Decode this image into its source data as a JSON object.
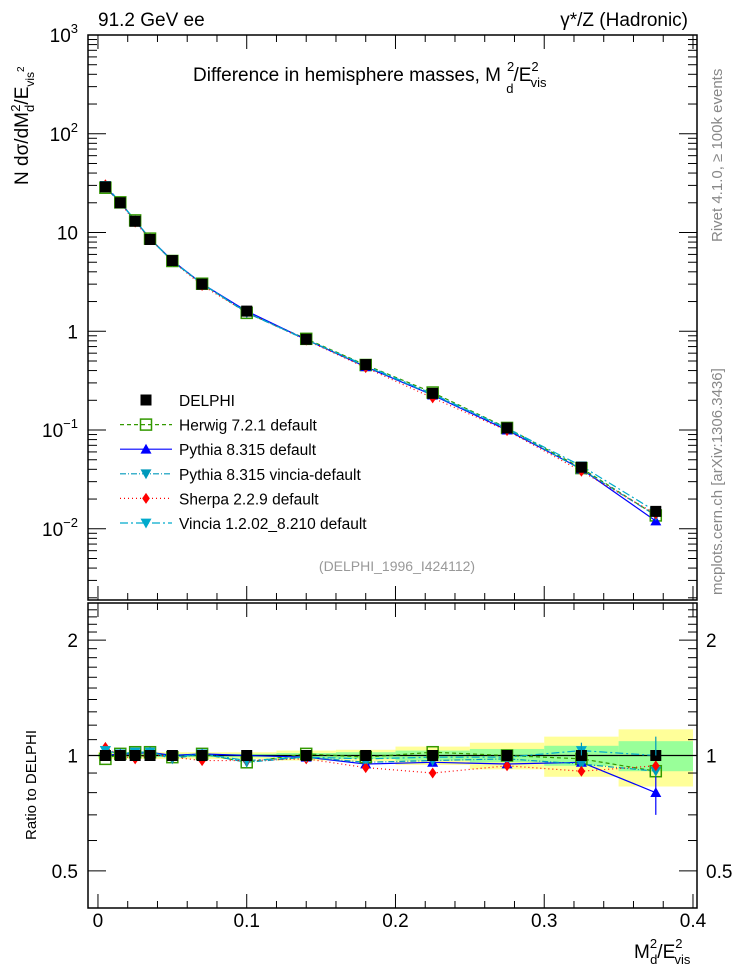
{
  "chart_data": {
    "type": "line",
    "header_left": "91.2 GeV ee",
    "header_right": "γ*/Z (Hadronic)",
    "title": "Difference in hemisphere masses, M",
    "title_sup": "2",
    "title_sub": "d",
    "title_tail": "/E",
    "title_tail_sup": "2",
    "title_tail_sub": "vis",
    "ylabel": "N  dσ/dM",
    "ylabel_sub": "d",
    "ylabel_sup": "2",
    "ylabel_tail": "/E",
    "ylabel_tail_sub": "vis",
    "ylabel_tail_sup": "2",
    "ratio_ylabel": "Ratio to DELPHI",
    "xlabel": "M",
    "xlabel_sup": "2",
    "xlabel_sub": "d",
    "xlabel_tail": "/E",
    "xlabel_tail_sup": "2",
    "xlabel_tail_sub": "vis",
    "side_text_top": "Rivet 4.1.0, ≥ 100k events",
    "side_text_bottom": "mcplots.cern.ch [arXiv:1306.3436]",
    "analysis_id": "(DELPHI_1996_I424112)",
    "xlim": [
      -0.0067,
      0.4027
    ],
    "ylim": [
      0.0019,
      1000
    ],
    "yscale": "log",
    "ratio_ylim": [
      0.4,
      2.5
    ],
    "x_ticks": [
      "0",
      "0.1",
      "0.2",
      "0.3",
      "0.4"
    ],
    "x_tick_values": [
      0,
      0.1,
      0.2,
      0.3,
      0.4
    ],
    "y_ticks": [
      {
        "v": 1000,
        "base": "10",
        "exp": "3"
      },
      {
        "v": 100,
        "base": "10",
        "exp": "2"
      },
      {
        "v": 10,
        "base": "10",
        "exp": ""
      },
      {
        "v": 1,
        "base": "1",
        "exp": ""
      },
      {
        "v": 0.1,
        "base": "10",
        "exp": "−1"
      },
      {
        "v": 0.01,
        "base": "10",
        "exp": "−2"
      }
    ],
    "ratio_ticks": [
      {
        "v": 2,
        "label": "2"
      },
      {
        "v": 1,
        "label": "1"
      },
      {
        "v": 0.5,
        "label": "0.5"
      }
    ],
    "bin_edges": [
      0,
      0.01,
      0.02,
      0.03,
      0.04,
      0.06,
      0.08,
      0.12,
      0.16,
      0.2,
      0.25,
      0.3,
      0.35,
      0.4
    ],
    "x": [
      0.005,
      0.015,
      0.025,
      0.035,
      0.05,
      0.07,
      0.1,
      0.14,
      0.18,
      0.225,
      0.275,
      0.325,
      0.375
    ],
    "data": {
      "name": "DELPHI",
      "values": [
        29,
        20,
        13,
        8.5,
        5.2,
        3.0,
        1.6,
        0.83,
        0.46,
        0.235,
        0.105,
        0.042,
        0.015
      ],
      "band_total": [
        0.02,
        0.02,
        0.02,
        0.02,
        0.02,
        0.02,
        0.02,
        0.03,
        0.035,
        0.055,
        0.08,
        0.12,
        0.17
      ],
      "band_stat": [
        0.01,
        0.01,
        0.01,
        0.01,
        0.01,
        0.01,
        0.01,
        0.015,
        0.02,
        0.03,
        0.04,
        0.06,
        0.09
      ],
      "color": "#000000"
    },
    "series": [
      {
        "name": "Herwig 7.2.1 default",
        "color": "#339900",
        "marker": "open-square",
        "dash": "4,3",
        "ratio": [
          0.98,
          1.01,
          1.02,
          1.02,
          0.99,
          1.01,
          0.96,
          1.01,
          0.99,
          1.02,
          1.0,
          0.98,
          0.91
        ]
      },
      {
        "name": "Pythia 8.315 default",
        "color": "#0000ff",
        "marker": "triangle-up",
        "dash": "",
        "ratio": [
          1.0,
          1.01,
          1.01,
          1.02,
          1.0,
          1.01,
          1.0,
          0.99,
          0.95,
          0.96,
          0.95,
          0.96,
          0.8
        ]
      },
      {
        "name": "Pythia 8.315 vincia-default",
        "color": "#0099bb",
        "marker": "triangle-down",
        "dash": "6,2,1,2",
        "ratio": [
          1.03,
          1.01,
          1.02,
          1.02,
          0.98,
          1.01,
          0.96,
          0.99,
          0.96,
          0.97,
          0.98,
          0.95,
          0.91
        ]
      },
      {
        "name": "Sherpa 2.2.9 default",
        "color": "#ff0000",
        "marker": "diamond",
        "dash": "1,3",
        "ratio": [
          1.05,
          1.0,
          0.98,
          1.01,
          0.99,
          0.97,
          0.97,
          0.98,
          0.93,
          0.9,
          0.94,
          0.91,
          0.94
        ]
      },
      {
        "name": "Vincia 1.2.02_8.210 default",
        "color": "#00aacc",
        "marker": "triangle-down",
        "dash": "8,3,2,3",
        "ratio": [
          1.03,
          1.01,
          1.02,
          1.02,
          0.99,
          1.01,
          0.97,
          0.99,
          0.98,
          0.99,
          0.99,
          1.03,
          1.0
        ]
      }
    ],
    "band_colors": {
      "total": "#ffff99",
      "stat": "#99ff99"
    },
    "legend_position": "bottom-left"
  }
}
